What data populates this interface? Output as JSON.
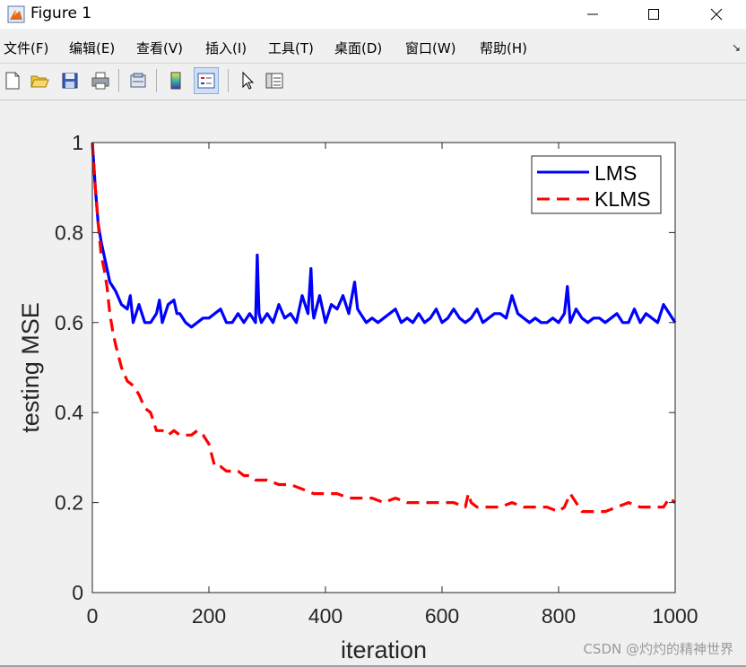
{
  "window": {
    "title": "Figure 1",
    "app_icon": "matlab-figure-icon",
    "controls": [
      "minimize-icon",
      "maximize-icon",
      "close-icon"
    ]
  },
  "menu": {
    "items": [
      {
        "label": "文件(F)"
      },
      {
        "label": "编辑(E)"
      },
      {
        "label": "查看(V)"
      },
      {
        "label": "插入(I)"
      },
      {
        "label": "工具(T)"
      },
      {
        "label": "桌面(D)"
      },
      {
        "label": "窗口(W)"
      },
      {
        "label": "帮助(H)"
      }
    ],
    "dock_arrow": "↘"
  },
  "toolbar": {
    "icons": [
      "new-figure-icon",
      "open-file-icon",
      "save-icon",
      "print-icon",
      "link-plot-icon",
      "colorbar-icon",
      "legend-icon",
      "pointer-icon",
      "property-editor-icon"
    ]
  },
  "watermark": "CSDN @灼灼的精神世界",
  "colors": {
    "lms": "#0000ff",
    "klms": "#ff0000"
  },
  "chart_data": {
    "type": "line",
    "xlabel": "iteration",
    "ylabel": "testing MSE",
    "xlim": [
      0,
      1000
    ],
    "ylim": [
      0,
      1
    ],
    "xticks": [
      "0",
      "200",
      "400",
      "600",
      "800",
      "1000"
    ],
    "yticks": [
      "0",
      "0.2",
      "0.4",
      "0.6",
      "0.8",
      "1"
    ],
    "grid": false,
    "legend_position": "top-right",
    "series": [
      {
        "name": "LMS",
        "style": "solid",
        "x": [
          0,
          5,
          10,
          15,
          20,
          25,
          30,
          40,
          50,
          60,
          65,
          70,
          80,
          90,
          100,
          110,
          115,
          120,
          130,
          140,
          145,
          150,
          160,
          170,
          180,
          190,
          200,
          210,
          220,
          230,
          240,
          250,
          260,
          270,
          280,
          283,
          286,
          290,
          300,
          310,
          320,
          330,
          340,
          350,
          360,
          370,
          375,
          378,
          380,
          390,
          400,
          410,
          420,
          430,
          440,
          450,
          455,
          460,
          470,
          480,
          490,
          500,
          510,
          520,
          530,
          540,
          550,
          560,
          570,
          580,
          590,
          600,
          610,
          620,
          630,
          640,
          650,
          660,
          670,
          680,
          690,
          700,
          710,
          720,
          730,
          740,
          750,
          760,
          770,
          780,
          790,
          800,
          810,
          815,
          820,
          830,
          840,
          850,
          860,
          870,
          880,
          890,
          900,
          910,
          920,
          930,
          940,
          950,
          960,
          970,
          980,
          990,
          1000
        ],
        "y": [
          1.0,
          0.9,
          0.82,
          0.78,
          0.75,
          0.72,
          0.69,
          0.67,
          0.64,
          0.63,
          0.66,
          0.6,
          0.64,
          0.6,
          0.6,
          0.62,
          0.65,
          0.6,
          0.64,
          0.65,
          0.62,
          0.62,
          0.6,
          0.59,
          0.6,
          0.61,
          0.61,
          0.62,
          0.63,
          0.6,
          0.6,
          0.62,
          0.6,
          0.62,
          0.6,
          0.75,
          0.62,
          0.6,
          0.62,
          0.6,
          0.64,
          0.61,
          0.62,
          0.6,
          0.66,
          0.62,
          0.72,
          0.63,
          0.61,
          0.66,
          0.6,
          0.64,
          0.63,
          0.66,
          0.62,
          0.69,
          0.63,
          0.62,
          0.6,
          0.61,
          0.6,
          0.61,
          0.62,
          0.63,
          0.6,
          0.61,
          0.6,
          0.62,
          0.6,
          0.61,
          0.63,
          0.6,
          0.61,
          0.63,
          0.61,
          0.6,
          0.61,
          0.63,
          0.6,
          0.61,
          0.62,
          0.62,
          0.61,
          0.66,
          0.62,
          0.61,
          0.6,
          0.61,
          0.6,
          0.6,
          0.61,
          0.6,
          0.62,
          0.68,
          0.6,
          0.63,
          0.61,
          0.6,
          0.61,
          0.61,
          0.6,
          0.61,
          0.62,
          0.6,
          0.6,
          0.63,
          0.6,
          0.62,
          0.61,
          0.6,
          0.64,
          0.62,
          0.6
        ]
      },
      {
        "name": "KLMS",
        "style": "dashed",
        "x": [
          0,
          5,
          10,
          15,
          20,
          25,
          30,
          35,
          40,
          50,
          60,
          70,
          80,
          90,
          100,
          110,
          120,
          130,
          140,
          150,
          160,
          170,
          180,
          190,
          200,
          210,
          220,
          230,
          240,
          250,
          260,
          270,
          280,
          300,
          320,
          340,
          360,
          380,
          400,
          420,
          440,
          460,
          480,
          500,
          520,
          540,
          560,
          580,
          600,
          620,
          640,
          645,
          650,
          660,
          680,
          700,
          720,
          740,
          760,
          780,
          800,
          810,
          820,
          830,
          840,
          850,
          860,
          880,
          900,
          920,
          940,
          960,
          980,
          990,
          1000
        ],
        "y": [
          1.0,
          0.9,
          0.82,
          0.75,
          0.72,
          0.68,
          0.62,
          0.58,
          0.55,
          0.5,
          0.47,
          0.46,
          0.44,
          0.41,
          0.4,
          0.36,
          0.36,
          0.35,
          0.36,
          0.35,
          0.35,
          0.35,
          0.36,
          0.35,
          0.33,
          0.28,
          0.28,
          0.27,
          0.27,
          0.27,
          0.26,
          0.26,
          0.25,
          0.25,
          0.24,
          0.24,
          0.23,
          0.22,
          0.22,
          0.22,
          0.21,
          0.21,
          0.21,
          0.2,
          0.21,
          0.2,
          0.2,
          0.2,
          0.2,
          0.2,
          0.19,
          0.22,
          0.2,
          0.19,
          0.19,
          0.19,
          0.2,
          0.19,
          0.19,
          0.19,
          0.18,
          0.19,
          0.22,
          0.2,
          0.18,
          0.18,
          0.18,
          0.18,
          0.19,
          0.2,
          0.19,
          0.19,
          0.19,
          0.21,
          0.2
        ]
      }
    ]
  }
}
